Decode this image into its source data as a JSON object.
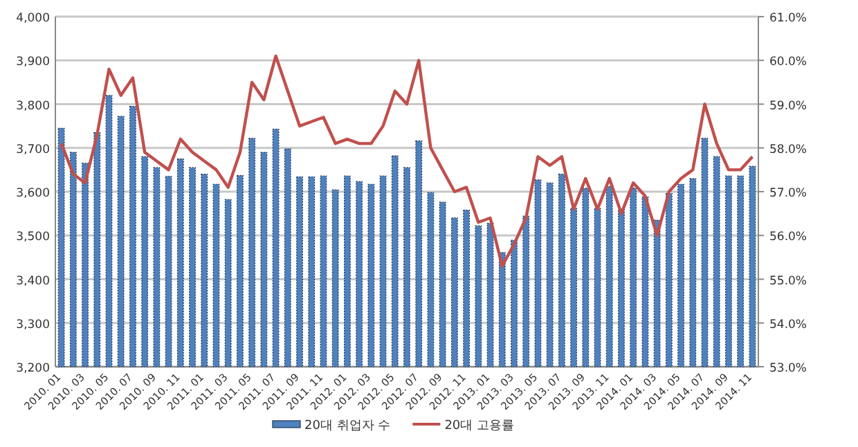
{
  "chart_data": {
    "type": "bar",
    "categories": [
      "2010. 01",
      null,
      "2010. 03",
      null,
      "2010. 05",
      null,
      "2010. 07",
      null,
      "2010. 09",
      null,
      "2010. 11",
      null,
      "2011. 01",
      null,
      "2011. 03",
      null,
      "2011. 05",
      null,
      "2011. 07",
      null,
      "2011. 09",
      null,
      "2011. 11",
      null,
      "2012. 01",
      null,
      "2012. 03",
      null,
      "2012. 05",
      null,
      "2012. 07",
      null,
      "2012. 09",
      null,
      "2012. 11",
      null,
      "2013. 01",
      null,
      "2013. 03",
      null,
      "2013. 05",
      null,
      "2013. 07",
      null,
      "2013. 09",
      null,
      "2013. 11",
      null,
      "2014. 01",
      null,
      "2014. 03",
      null,
      "2014. 05",
      null,
      "2014. 07",
      null,
      "2014. 09",
      null,
      "2014. 11"
    ],
    "series": [
      {
        "name": "20대 취업자 수",
        "color": "#4f81bd",
        "values": [
          3745,
          3690,
          3665,
          3735,
          3820,
          3772,
          3795,
          3680,
          3655,
          3635,
          3675,
          3655,
          3640,
          3617,
          3582,
          3637,
          3722,
          3690,
          3743,
          3698,
          3634,
          3634,
          3636,
          3604,
          3636,
          3623,
          3617,
          3636,
          3682,
          3655,
          3716,
          3598,
          3576,
          3540,
          3558,
          3522,
          3528,
          3461,
          3489,
          3544,
          3627,
          3620,
          3640,
          3562,
          3608,
          3562,
          3612,
          3559,
          3608,
          3588,
          3535,
          3596,
          3617,
          3630,
          3722,
          3680,
          3636,
          3636,
          3658
        ]
      },
      {
        "name": "20대 고용률",
        "type": "line",
        "axis": "y2",
        "color": "#c0504d",
        "values": [
          58.1,
          57.4,
          57.2,
          58.3,
          59.8,
          59.2,
          59.6,
          57.9,
          57.7,
          57.5,
          58.2,
          57.9,
          57.7,
          57.5,
          57.1,
          57.9,
          59.5,
          59.1,
          60.1,
          59.3,
          58.5,
          58.6,
          58.7,
          58.1,
          58.2,
          58.1,
          58.1,
          58.5,
          59.3,
          59.0,
          60.0,
          58.0,
          57.5,
          57.0,
          57.1,
          56.3,
          56.4,
          55.3,
          55.8,
          56.4,
          57.8,
          57.6,
          57.8,
          56.6,
          57.3,
          56.6,
          57.3,
          56.5,
          57.2,
          56.9,
          56.0,
          57.0,
          57.3,
          57.5,
          59.0,
          58.1,
          57.5,
          57.5,
          57.8
        ]
      }
    ],
    "ylim": [
      3200,
      4000
    ],
    "yticks": [
      {
        "value": 3200,
        "label": "3,200"
      },
      {
        "value": 3300,
        "label": "3,300"
      },
      {
        "value": 3400,
        "label": "3,400"
      },
      {
        "value": 3500,
        "label": "3,500"
      },
      {
        "value": 3600,
        "label": "3,600"
      },
      {
        "value": 3700,
        "label": "3,700"
      },
      {
        "value": 3800,
        "label": "3,800"
      },
      {
        "value": 3900,
        "label": "3,900"
      },
      {
        "value": 4000,
        "label": "4,000"
      }
    ],
    "y2lim": [
      53,
      61
    ],
    "y2ticks": [
      {
        "value": 53,
        "label": "53.0%"
      },
      {
        "value": 54,
        "label": "54.0%"
      },
      {
        "value": 55,
        "label": "55.0%"
      },
      {
        "value": 56,
        "label": "56.0%"
      },
      {
        "value": 57,
        "label": "57.0%"
      },
      {
        "value": 58,
        "label": "58.0%"
      },
      {
        "value": 59,
        "label": "59.0%"
      },
      {
        "value": 60,
        "label": "60.0%"
      },
      {
        "value": 61,
        "label": "61.0%"
      }
    ],
    "grid": "y",
    "legend": "bottom"
  }
}
